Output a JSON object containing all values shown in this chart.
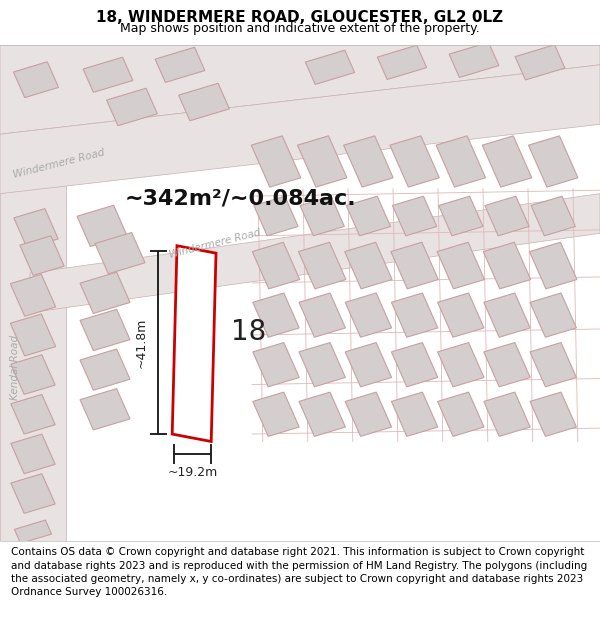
{
  "title": "18, WINDERMERE ROAD, GLOUCESTER, GL2 0LZ",
  "subtitle": "Map shows position and indicative extent of the property.",
  "footer": "Contains OS data © Crown copyright and database right 2021. This information is subject to Crown copyright and database rights 2023 and is reproduced with the permission of HM Land Registry. The polygons (including the associated geometry, namely x, y co-ordinates) are subject to Crown copyright and database rights 2023 Ordnance Survey 100026316.",
  "area_label": "~342m²/~0.084ac.",
  "width_label": "~19.2m",
  "height_label": "~41.8m",
  "number_label": "18",
  "map_bg": "#f5f0f0",
  "road_fill": "#e8e2e2",
  "building_fill": "#d4cece",
  "building_stroke": "#c8a0a0",
  "highlight_color": "#cc0000",
  "dim_color": "#222222",
  "road_label_color": "#aaaaaa",
  "title_fontsize": 11,
  "subtitle_fontsize": 9,
  "footer_fontsize": 7.5,
  "area_fontsize": 16,
  "number_fontsize": 20
}
